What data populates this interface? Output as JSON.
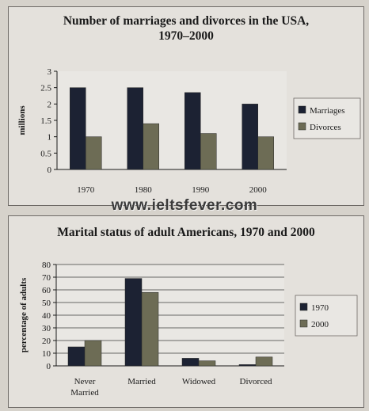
{
  "watermark": "www.ieltsfever.com",
  "chart_data": [
    {
      "type": "bar",
      "title": "Number of marriages and divorces in the USA, 1970–2000",
      "title_lines": [
        "Number of marriages and divorces in the USA,",
        "1970–2000"
      ],
      "categories": [
        "1970",
        "1980",
        "1990",
        "2000"
      ],
      "category_lines": [
        [
          "1970"
        ],
        [
          "1980"
        ],
        [
          "1990"
        ],
        [
          "2000"
        ]
      ],
      "series": [
        {
          "name": "Marriages",
          "values": [
            2.5,
            2.5,
            2.35,
            2.0
          ],
          "color": "#1c2233"
        },
        {
          "name": "Divorces",
          "values": [
            1.0,
            1.4,
            1.1,
            1.0
          ],
          "color": "#6d6c55"
        }
      ],
      "xlabel": "",
      "ylabel": "millions",
      "ylim": [
        0,
        3
      ],
      "yticks": [
        "0",
        "0.5",
        "1",
        "1.5",
        "2",
        "2.5",
        "3"
      ],
      "ytick_values": [
        0,
        0.5,
        1,
        1.5,
        2,
        2.5,
        3
      ],
      "grid": false,
      "legend": "right"
    },
    {
      "type": "bar",
      "title": "Marital status of adult Americans, 1970 and 2000",
      "title_lines": [
        "Marital status of adult Americans, 1970 and 2000"
      ],
      "categories": [
        "Never Married",
        "Married",
        "Widowed",
        "Divorced"
      ],
      "category_lines": [
        [
          "Never",
          "Married"
        ],
        [
          "Married"
        ],
        [
          "Widowed"
        ],
        [
          "Divorced"
        ]
      ],
      "series": [
        {
          "name": "1970",
          "values": [
            15,
            69,
            6,
            1
          ],
          "color": "#1c2233"
        },
        {
          "name": "2000",
          "values": [
            20,
            58,
            4,
            7
          ],
          "color": "#6d6c55"
        }
      ],
      "xlabel": "",
      "ylabel": "percentage of adults",
      "ylim": [
        0,
        80
      ],
      "yticks": [
        "0",
        "10",
        "20",
        "30",
        "40",
        "50",
        "60",
        "70",
        "80"
      ],
      "ytick_values": [
        0,
        10,
        20,
        30,
        40,
        50,
        60,
        70,
        80
      ],
      "grid": true,
      "legend": "right"
    }
  ]
}
